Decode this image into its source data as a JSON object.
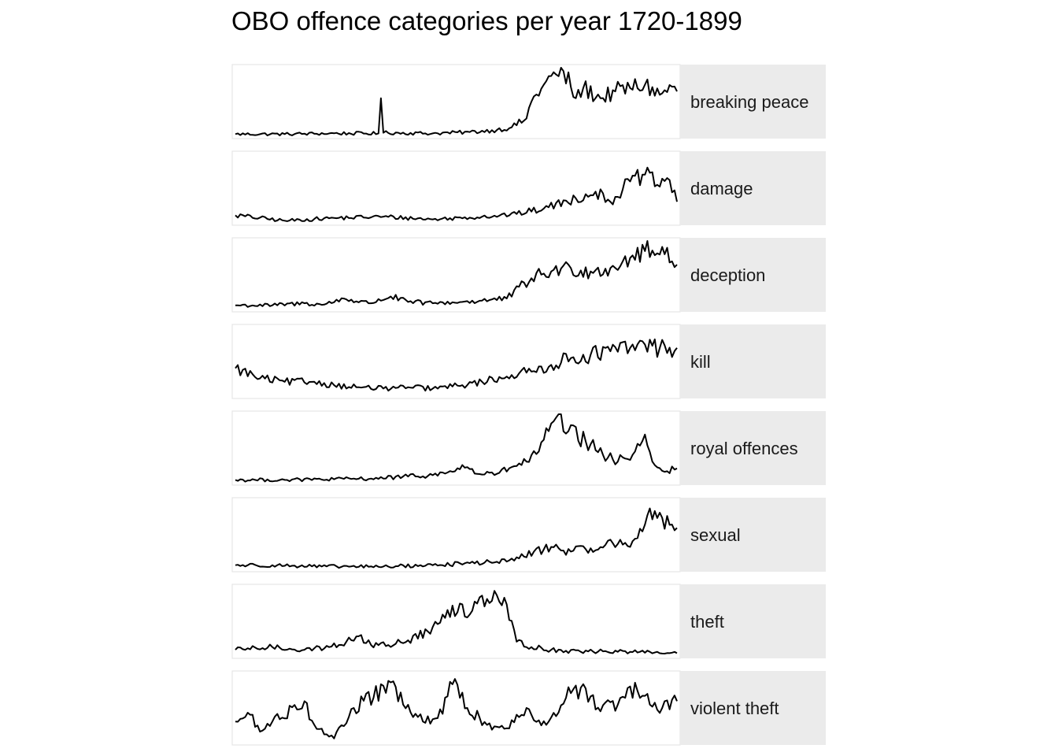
{
  "chart_data": {
    "type": "line",
    "title": "OBO offence categories per year 1720-1899",
    "xlabel": "",
    "ylabel": "",
    "x_range": [
      1720,
      1899
    ],
    "scales": "free_y",
    "grid": false,
    "legend": "none",
    "line_color": "#000000",
    "strip_color": "#ebebeb",
    "panel_border_color": "#e5e5e5",
    "series": [
      {
        "name": "breaking peace",
        "anchors": [
          [
            1720,
            0.02
          ],
          [
            1740,
            0.02
          ],
          [
            1758,
            0.03
          ],
          [
            1778,
            0.03
          ],
          [
            1779,
            0.55
          ],
          [
            1780,
            0.04
          ],
          [
            1800,
            0.03
          ],
          [
            1815,
            0.05
          ],
          [
            1826,
            0.08
          ],
          [
            1832,
            0.12
          ],
          [
            1838,
            0.25
          ],
          [
            1840,
            0.5
          ],
          [
            1845,
            0.75
          ],
          [
            1850,
            0.9
          ],
          [
            1853,
            0.95
          ],
          [
            1858,
            0.55
          ],
          [
            1861,
            0.7
          ],
          [
            1868,
            0.55
          ],
          [
            1874,
            0.65
          ],
          [
            1880,
            0.7
          ],
          [
            1886,
            0.75
          ],
          [
            1892,
            0.6
          ],
          [
            1897,
            0.72
          ],
          [
            1899,
            0.65
          ]
        ]
      },
      {
        "name": "damage",
        "anchors": [
          [
            1720,
            0.1
          ],
          [
            1740,
            0.02
          ],
          [
            1760,
            0.06
          ],
          [
            1780,
            0.08
          ],
          [
            1800,
            0.04
          ],
          [
            1820,
            0.08
          ],
          [
            1834,
            0.12
          ],
          [
            1845,
            0.2
          ],
          [
            1858,
            0.35
          ],
          [
            1866,
            0.45
          ],
          [
            1872,
            0.3
          ],
          [
            1880,
            0.6
          ],
          [
            1886,
            0.7
          ],
          [
            1891,
            0.55
          ],
          [
            1895,
            0.65
          ],
          [
            1899,
            0.3
          ]
        ]
      },
      {
        "name": "deception",
        "anchors": [
          [
            1720,
            0.05
          ],
          [
            1735,
            0.05
          ],
          [
            1748,
            0.08
          ],
          [
            1756,
            0.06
          ],
          [
            1764,
            0.15
          ],
          [
            1774,
            0.08
          ],
          [
            1783,
            0.18
          ],
          [
            1790,
            0.1
          ],
          [
            1800,
            0.08
          ],
          [
            1812,
            0.1
          ],
          [
            1820,
            0.12
          ],
          [
            1830,
            0.15
          ],
          [
            1840,
            0.45
          ],
          [
            1848,
            0.55
          ],
          [
            1856,
            0.6
          ],
          [
            1864,
            0.55
          ],
          [
            1872,
            0.6
          ],
          [
            1880,
            0.75
          ],
          [
            1886,
            0.85
          ],
          [
            1892,
            0.8
          ],
          [
            1895,
            0.9
          ],
          [
            1899,
            0.65
          ]
        ]
      },
      {
        "name": "kill",
        "anchors": [
          [
            1720,
            0.4
          ],
          [
            1730,
            0.25
          ],
          [
            1740,
            0.2
          ],
          [
            1752,
            0.2
          ],
          [
            1760,
            0.15
          ],
          [
            1770,
            0.12
          ],
          [
            1780,
            0.1
          ],
          [
            1790,
            0.12
          ],
          [
            1800,
            0.1
          ],
          [
            1812,
            0.15
          ],
          [
            1820,
            0.2
          ],
          [
            1832,
            0.3
          ],
          [
            1840,
            0.35
          ],
          [
            1848,
            0.45
          ],
          [
            1856,
            0.55
          ],
          [
            1864,
            0.6
          ],
          [
            1872,
            0.65
          ],
          [
            1880,
            0.7
          ],
          [
            1886,
            0.75
          ],
          [
            1892,
            0.7
          ],
          [
            1899,
            0.7
          ]
        ]
      },
      {
        "name": "royal offences",
        "anchors": [
          [
            1720,
            0.03
          ],
          [
            1740,
            0.03
          ],
          [
            1760,
            0.04
          ],
          [
            1775,
            0.05
          ],
          [
            1790,
            0.08
          ],
          [
            1800,
            0.1
          ],
          [
            1808,
            0.15
          ],
          [
            1812,
            0.25
          ],
          [
            1818,
            0.12
          ],
          [
            1826,
            0.12
          ],
          [
            1832,
            0.22
          ],
          [
            1838,
            0.3
          ],
          [
            1843,
            0.45
          ],
          [
            1847,
            0.75
          ],
          [
            1850,
            0.95
          ],
          [
            1855,
            0.75
          ],
          [
            1862,
            0.6
          ],
          [
            1869,
            0.4
          ],
          [
            1875,
            0.3
          ],
          [
            1882,
            0.45
          ],
          [
            1886,
            0.7
          ],
          [
            1889,
            0.3
          ],
          [
            1894,
            0.15
          ],
          [
            1899,
            0.2
          ]
        ]
      },
      {
        "name": "sexual",
        "anchors": [
          [
            1720,
            0.05
          ],
          [
            1735,
            0.05
          ],
          [
            1755,
            0.03
          ],
          [
            1780,
            0.03
          ],
          [
            1800,
            0.05
          ],
          [
            1815,
            0.08
          ],
          [
            1826,
            0.1
          ],
          [
            1835,
            0.15
          ],
          [
            1841,
            0.25
          ],
          [
            1848,
            0.32
          ],
          [
            1856,
            0.25
          ],
          [
            1864,
            0.3
          ],
          [
            1870,
            0.35
          ],
          [
            1878,
            0.38
          ],
          [
            1883,
            0.45
          ],
          [
            1886,
            0.65
          ],
          [
            1890,
            0.85
          ],
          [
            1893,
            0.75
          ],
          [
            1897,
            0.65
          ],
          [
            1899,
            0.6
          ]
        ]
      },
      {
        "name": "theft",
        "anchors": [
          [
            1720,
            0.08
          ],
          [
            1735,
            0.12
          ],
          [
            1748,
            0.08
          ],
          [
            1758,
            0.12
          ],
          [
            1765,
            0.2
          ],
          [
            1770,
            0.28
          ],
          [
            1775,
            0.15
          ],
          [
            1782,
            0.15
          ],
          [
            1790,
            0.22
          ],
          [
            1798,
            0.35
          ],
          [
            1805,
            0.55
          ],
          [
            1812,
            0.75
          ],
          [
            1815,
            0.6
          ],
          [
            1820,
            0.88
          ],
          [
            1825,
            0.95
          ],
          [
            1830,
            0.75
          ],
          [
            1834,
            0.2
          ],
          [
            1840,
            0.12
          ],
          [
            1848,
            0.08
          ],
          [
            1860,
            0.05
          ],
          [
            1870,
            0.06
          ],
          [
            1880,
            0.05
          ],
          [
            1890,
            0.04
          ],
          [
            1899,
            0.03
          ]
        ]
      },
      {
        "name": "violent theft",
        "anchors": [
          [
            1720,
            0.3
          ],
          [
            1726,
            0.4
          ],
          [
            1730,
            0.15
          ],
          [
            1735,
            0.3
          ],
          [
            1748,
            0.6
          ],
          [
            1752,
            0.25
          ],
          [
            1760,
            0.05
          ],
          [
            1768,
            0.5
          ],
          [
            1776,
            0.65
          ],
          [
            1782,
            0.9
          ],
          [
            1788,
            0.55
          ],
          [
            1796,
            0.3
          ],
          [
            1802,
            0.35
          ],
          [
            1808,
            0.85
          ],
          [
            1814,
            0.5
          ],
          [
            1822,
            0.25
          ],
          [
            1830,
            0.2
          ],
          [
            1838,
            0.5
          ],
          [
            1846,
            0.25
          ],
          [
            1854,
            0.65
          ],
          [
            1860,
            0.8
          ],
          [
            1868,
            0.45
          ],
          [
            1878,
            0.65
          ],
          [
            1883,
            0.75
          ],
          [
            1888,
            0.55
          ],
          [
            1893,
            0.5
          ],
          [
            1899,
            0.6
          ]
        ]
      }
    ]
  }
}
